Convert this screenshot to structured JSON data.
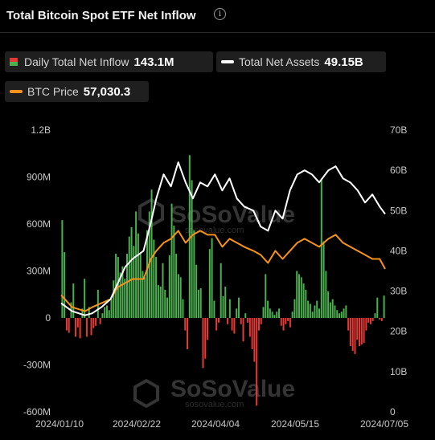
{
  "header": {
    "title": "Total Bitcoin Spot ETF Net Inflow",
    "info_icon": "info-circle-icon"
  },
  "legend": {
    "inflow": {
      "label": "Daily Total Net Inflow",
      "value": "143.1M",
      "color_pos": "#4caf50",
      "color_neg": "#e53935"
    },
    "assets": {
      "label": "Total Net Assets",
      "value": "49.15B",
      "color": "#ffffff"
    },
    "btc": {
      "label": "BTC Price",
      "value": "57,030.3",
      "color": "#f7931a"
    }
  },
  "watermark": {
    "brand": "SoSoValue",
    "url": "sosovalue.com"
  },
  "chart_data": {
    "type": "bar",
    "x_range": [
      "2024-01-10",
      "2024-07-05"
    ],
    "x_tick_labels": [
      "2024/01/10",
      "2024/02/22",
      "2024/04/04",
      "2024/05/15",
      "2024/07/05"
    ],
    "y_left": {
      "ylim": [
        -600,
        1200
      ],
      "unit": "millions USD",
      "tick_labels": [
        "1.2B",
        "900M",
        "600M",
        "300M",
        "0",
        "-300M",
        "-600M"
      ]
    },
    "y_right": {
      "ylim": [
        0,
        70
      ],
      "unit": "billions USD",
      "tick_labels": [
        "70B",
        "60B",
        "50B",
        "40B",
        "30B",
        "20B",
        "10B",
        "0"
      ]
    },
    "series": [
      {
        "name": "Daily Total Net Inflow",
        "type": "bar",
        "axis": "left",
        "values": [
          625,
          420,
          -80,
          -95,
          100,
          220,
          -120,
          -60,
          -130,
          60,
          250,
          -120,
          70,
          -110,
          -65,
          -50,
          180,
          -40,
          30,
          70,
          80,
          50,
          120,
          240,
          410,
          390,
          290,
          330,
          250,
          410,
          520,
          580,
          460,
          680,
          540,
          410,
          300,
          260,
          560,
          680,
          820,
          500,
          390,
          210,
          200,
          350,
          180,
          130,
          400,
          730,
          590,
          410,
          280,
          260,
          120,
          -80,
          -200,
          1040,
          880,
          560,
          340,
          180,
          190,
          -320,
          -260,
          -140,
          440,
          510,
          110,
          -80,
          -30,
          350,
          140,
          200,
          -40,
          120,
          -80,
          -100,
          60,
          130,
          -40,
          -150,
          30,
          -30,
          -120,
          -200,
          -280,
          -560,
          -80,
          -40,
          70,
          280,
          110,
          60,
          40,
          20,
          40,
          60,
          -50,
          -80,
          -40,
          -20,
          -60,
          40,
          120,
          300,
          280,
          260,
          220,
          180,
          110,
          90,
          40,
          80,
          110,
          60,
          890,
          490,
          300,
          170,
          100,
          120,
          80,
          50,
          30,
          40,
          60,
          80,
          -80,
          -180,
          -210,
          -230,
          -140,
          -180,
          -170,
          -160,
          -80,
          -30,
          -40,
          -20,
          30,
          130,
          -10,
          -20,
          143.1
        ]
      },
      {
        "name": "Total Net Assets",
        "type": "line",
        "axis": "right",
        "x": [
          "2024-01-10",
          "2024-01-16",
          "2024-01-23",
          "2024-01-27",
          "2024-02-01",
          "2024-02-06",
          "2024-02-10",
          "2024-02-14",
          "2024-02-18",
          "2024-02-24",
          "2024-02-28",
          "2024-03-02",
          "2024-03-06",
          "2024-03-10",
          "2024-03-14",
          "2024-03-18",
          "2024-03-22",
          "2024-03-26",
          "2024-03-30",
          "2024-04-03",
          "2024-04-07",
          "2024-04-11",
          "2024-04-15",
          "2024-04-19",
          "2024-04-24",
          "2024-04-28",
          "2024-05-02",
          "2024-05-06",
          "2024-05-10",
          "2024-05-14",
          "2024-05-18",
          "2024-05-22",
          "2024-05-26",
          "2024-05-30",
          "2024-06-04",
          "2024-06-08",
          "2024-06-12",
          "2024-06-16",
          "2024-06-20",
          "2024-06-24",
          "2024-06-28",
          "2024-07-02",
          "2024-07-05"
        ],
        "values": [
          27,
          25,
          24,
          24.5,
          26,
          28,
          32,
          36,
          38,
          40,
          47,
          53,
          59,
          56,
          62,
          57,
          53,
          57,
          56,
          59,
          55,
          58,
          53,
          51,
          50,
          46,
          45,
          50,
          48,
          55,
          59,
          60,
          59,
          57,
          60,
          61,
          58,
          57,
          55,
          52,
          54,
          51,
          49.15
        ]
      },
      {
        "name": "BTC Price",
        "type": "line",
        "axis": "right",
        "x": [
          "2024-01-10",
          "2024-01-16",
          "2024-01-23",
          "2024-01-27",
          "2024-02-01",
          "2024-02-06",
          "2024-02-10",
          "2024-02-14",
          "2024-02-18",
          "2024-02-24",
          "2024-02-28",
          "2024-03-02",
          "2024-03-06",
          "2024-03-10",
          "2024-03-14",
          "2024-03-18",
          "2024-03-22",
          "2024-03-26",
          "2024-03-30",
          "2024-04-03",
          "2024-04-07",
          "2024-04-11",
          "2024-04-15",
          "2024-04-19",
          "2024-04-24",
          "2024-04-28",
          "2024-05-02",
          "2024-05-06",
          "2024-05-10",
          "2024-05-14",
          "2024-05-18",
          "2024-05-22",
          "2024-05-26",
          "2024-05-30",
          "2024-06-04",
          "2024-06-08",
          "2024-06-12",
          "2024-06-16",
          "2024-06-20",
          "2024-06-24",
          "2024-06-28",
          "2024-07-02",
          "2024-07-05"
        ],
        "values": [
          29,
          26,
          25,
          26,
          27,
          28,
          31,
          32,
          33,
          33,
          38,
          40,
          42,
          43,
          45,
          42,
          44,
          45,
          44,
          44,
          41,
          43,
          42,
          41,
          40,
          39,
          37,
          40,
          38,
          40,
          42,
          43,
          42,
          41,
          43,
          44,
          42,
          41,
          40,
          39,
          38,
          38,
          35.5
        ]
      }
    ],
    "grid": false,
    "legend_placement": "top"
  }
}
